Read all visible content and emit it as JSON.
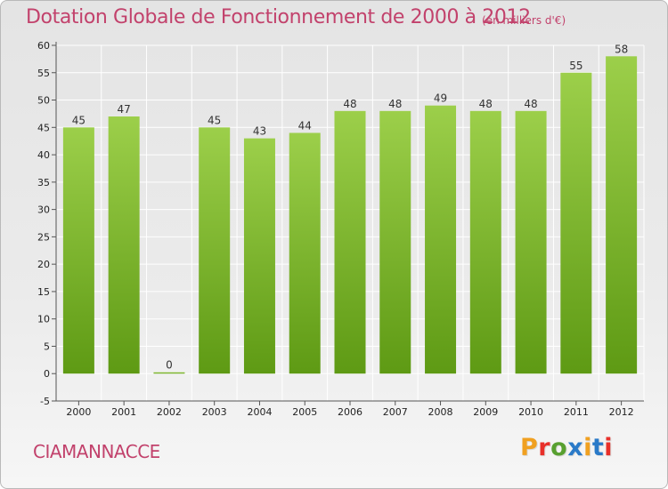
{
  "header": {
    "title": "Dotation Globale de Fonctionnement de 2000 à 2012",
    "unit": "(en milliers d'€)"
  },
  "footer": {
    "commune": "CIAMANNACCE",
    "logo_text": "Proxiti",
    "logo_colors": [
      "#f0a020",
      "#e8302a",
      "#58a030",
      "#2a7ac8",
      "#f0a020",
      "#2a7ac8",
      "#e8302a"
    ]
  },
  "chart_data": {
    "type": "bar",
    "title": "Dotation Globale de Fonctionnement de 2000 à 2012",
    "subtitle": "(en milliers d'€)",
    "xlabel": "",
    "ylabel": "",
    "categories": [
      "2000",
      "2001",
      "2002",
      "2003",
      "2004",
      "2005",
      "2006",
      "2007",
      "2008",
      "2009",
      "2010",
      "2011",
      "2012"
    ],
    "values": [
      45,
      47,
      0,
      45,
      43,
      44,
      48,
      48,
      49,
      48,
      48,
      55,
      58
    ],
    "data_labels": [
      "45",
      "47",
      "0",
      "45",
      "43",
      "44",
      "48",
      "48",
      "49",
      "48",
      "48",
      "55",
      "58"
    ],
    "ylim": [
      -5,
      60
    ],
    "yticks": [
      -5,
      0,
      5,
      10,
      15,
      20,
      25,
      30,
      35,
      40,
      45,
      50,
      55,
      60
    ],
    "grid": true,
    "legend": "none",
    "bar_color_top": "#9ccf4a",
    "bar_color_bottom": "#5e9a14",
    "grid_color": "#ffffff"
  }
}
